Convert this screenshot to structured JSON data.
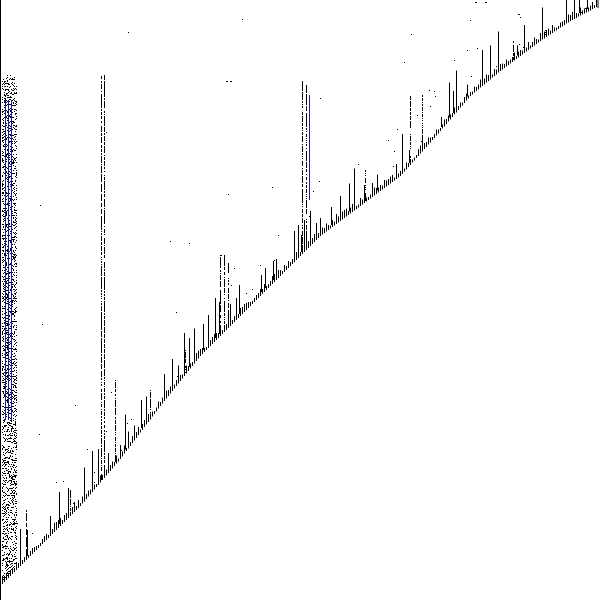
{
  "figure": {
    "kind": "sparse matrix structure (spy plot)",
    "pattern": "upper-triangular",
    "text": "",
    "colors": {
      "background": "#ffffff",
      "nonzero": "#000000",
      "highlight": "#1a1aa8"
    }
  }
}
